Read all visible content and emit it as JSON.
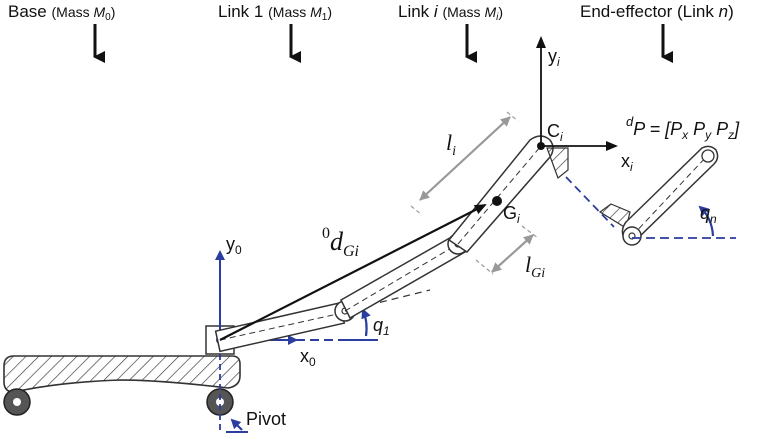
{
  "headers": {
    "base": {
      "name": "Base",
      "mass_word": "Mass",
      "mass_sym": "M",
      "mass_sub": "0"
    },
    "link1": {
      "name": "Link 1",
      "mass_word": "Mass",
      "mass_sym": "M",
      "mass_sub": "1"
    },
    "linki": {
      "name": "Link",
      "index": "i",
      "mass_word": "Mass",
      "mass_sym": "M",
      "mass_sub": "i"
    },
    "end_effector": {
      "text": "End-effector (Link",
      "index": "n",
      "close": ")"
    }
  },
  "labels": {
    "y0": {
      "base": "y",
      "sub": "0"
    },
    "x0": {
      "base": "x",
      "sub": "0"
    },
    "q1": {
      "base": "q",
      "sub": "1"
    },
    "d_gi": {
      "sup": "0",
      "base": "d",
      "sub": "Gi"
    },
    "li": {
      "base": "l",
      "sub": "i"
    },
    "lgi": {
      "base": "l",
      "sub": "Gi"
    },
    "gi": {
      "base": "G",
      "sub": "i"
    },
    "ci": {
      "base": "C",
      "sub": "i"
    },
    "yi": {
      "base": "y",
      "sub": "i"
    },
    "xi": {
      "base": "x",
      "sub": "i"
    },
    "qn": {
      "base": "q",
      "sub": "n"
    },
    "p_eq": {
      "sup": "d",
      "lhs": "P = [",
      "px": "P",
      "px_sub": "x",
      "py": "P",
      "py_sub": "y",
      "pz": "P",
      "pz_sub": "z",
      "close": "]"
    },
    "pivot": "Pivot"
  },
  "colors": {
    "axis_blue": "#2b3d9e",
    "dim_gray": "#999999",
    "link_line": "#333333",
    "text": "#111111"
  }
}
